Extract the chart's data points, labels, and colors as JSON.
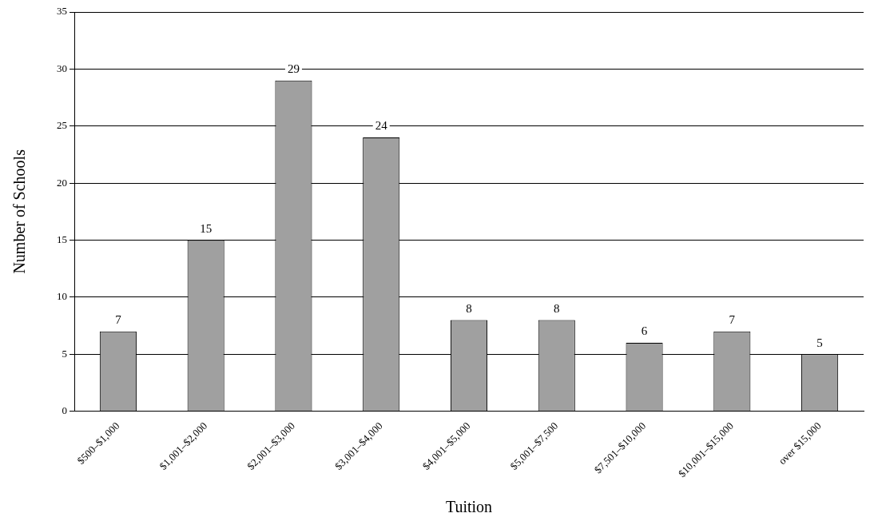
{
  "chart_data": {
    "type": "bar",
    "xlabel": "Tuition",
    "ylabel": "Number of Schools",
    "categories": [
      "$500–$1,000",
      "$1,001–$2,000",
      "$2,001–$3,000",
      "$3,001–$4,000",
      "$4,001–$5,000",
      "$5,001–$7,500",
      "$7,501–$10,000",
      "$10,001–$15,000",
      "over $15,000"
    ],
    "values": [
      7,
      15,
      29,
      24,
      8,
      8,
      6,
      7,
      5
    ],
    "color": "#a0a0a0",
    "ylim": [
      0,
      35
    ],
    "yticks": [
      0,
      5,
      10,
      15,
      20,
      25,
      30,
      35
    ],
    "grid": "y",
    "data_labels": true,
    "legend": false
  }
}
